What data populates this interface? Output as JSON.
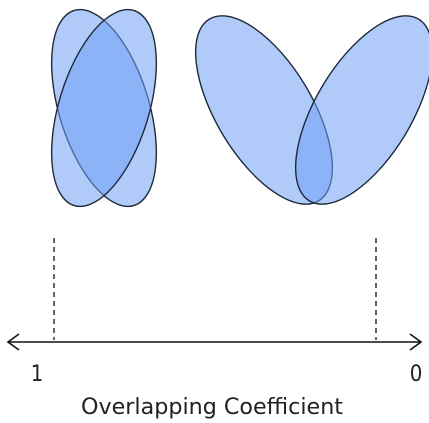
{
  "diagram": {
    "axis": {
      "left_label": "1",
      "right_label": "0",
      "title": "Overlapping Coefficient"
    },
    "examples": [
      {
        "overlap": "high"
      },
      {
        "overlap": "low"
      }
    ],
    "colors": {
      "fill": "#6f9ff5",
      "fill_opacity": "0.55",
      "stroke": "#1f2a3a",
      "axis": "#111111",
      "text": "#222222"
    }
  }
}
